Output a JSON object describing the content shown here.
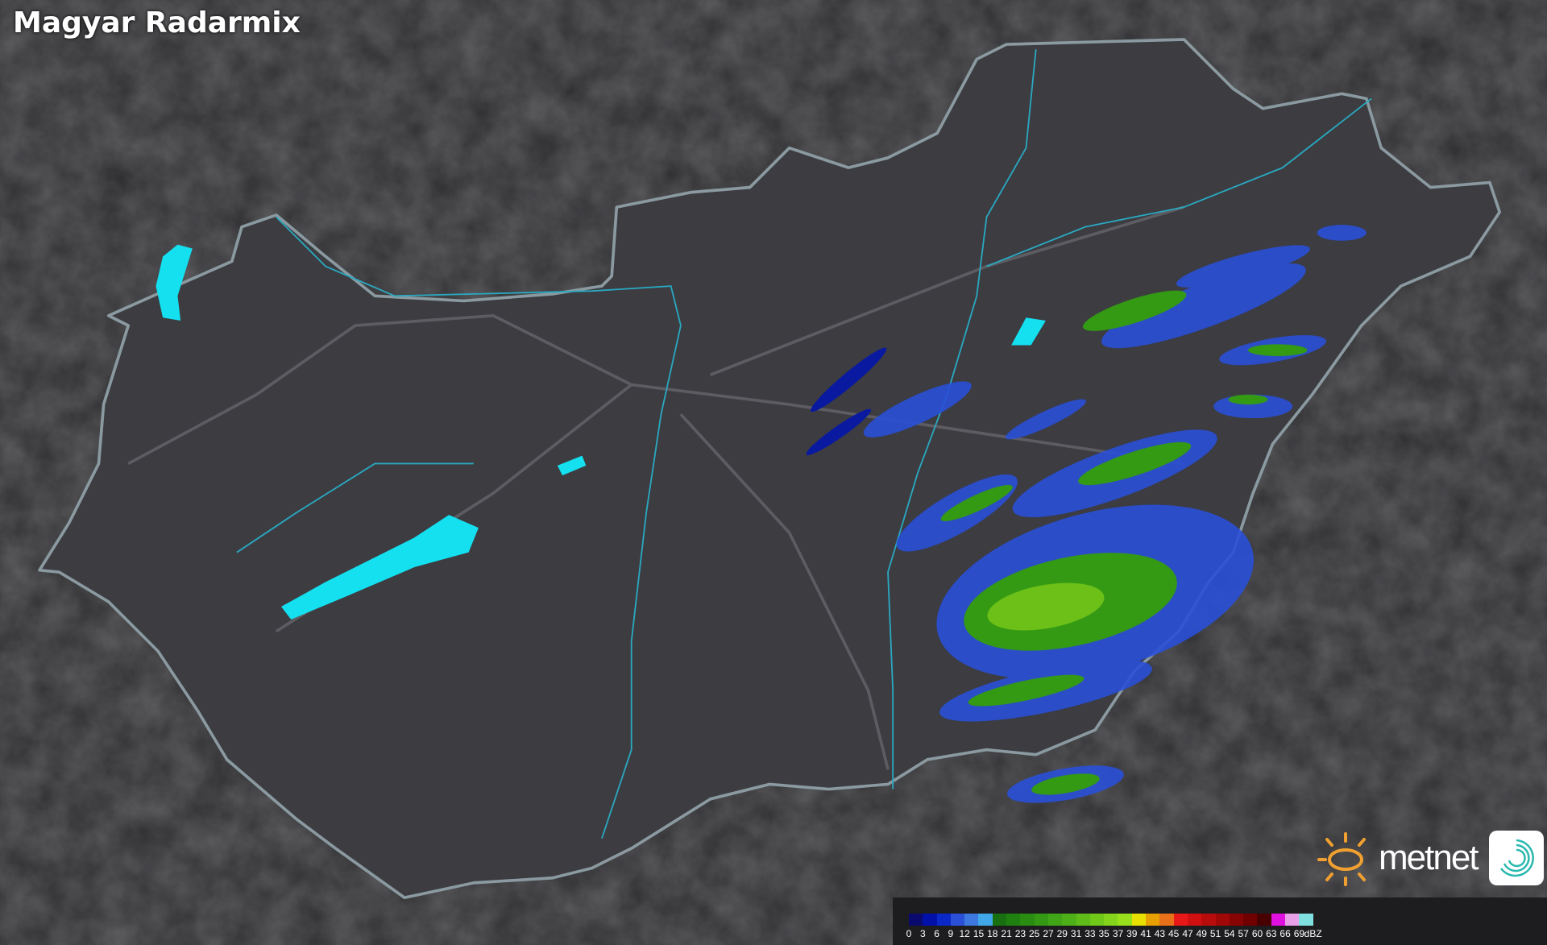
{
  "title": "Magyar Radarmix",
  "legend": {
    "unit": "dBZ",
    "labels": [
      "0",
      "3",
      "6",
      "9",
      "12",
      "15",
      "18",
      "21",
      "23",
      "25",
      "27",
      "29",
      "31",
      "33",
      "35",
      "37",
      "39",
      "41",
      "43",
      "45",
      "47",
      "49",
      "51",
      "54",
      "57",
      "60",
      "63",
      "66",
      "69"
    ],
    "colors": [
      "#0a0a6e",
      "#0010a8",
      "#0a28c8",
      "#2a50d8",
      "#3c78e0",
      "#40a8e8",
      "#187010",
      "#1f8010",
      "#2a8c10",
      "#349a14",
      "#40a618",
      "#4eb018",
      "#60bc18",
      "#70c818",
      "#84d41c",
      "#98e01c",
      "#e8e000",
      "#e8a000",
      "#e87018",
      "#e81818",
      "#d01010",
      "#b80c0c",
      "#a00808",
      "#880404",
      "#700000",
      "#480000",
      "#e010e0",
      "#e8a0e8",
      "#80e0e0"
    ]
  },
  "brand": {
    "name": "metnet",
    "sun_color": "#f0a030",
    "icon": "metnet-swirl-icon"
  },
  "colors": {
    "background": "#2e2e31",
    "country": "#3c3c41",
    "border": "#8a9aa0",
    "rivers": "#2aa8c0",
    "lakes": "#14e0f0"
  }
}
